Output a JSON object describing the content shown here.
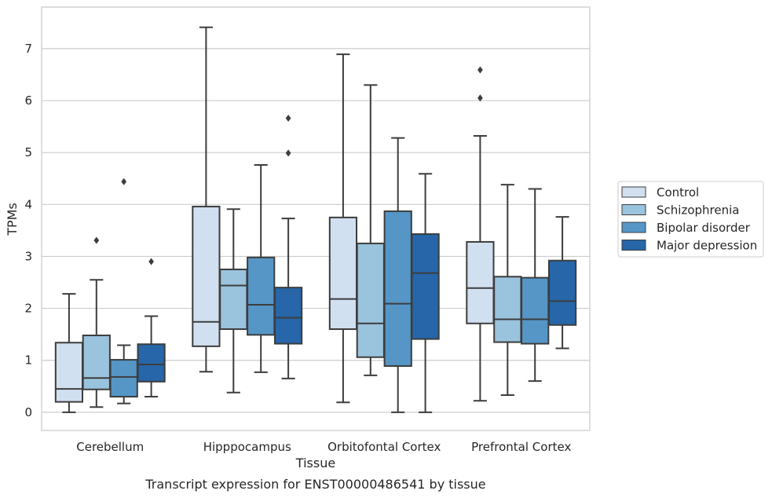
{
  "chart_data": {
    "type": "box",
    "title": "",
    "caption": "Transcript expression for ENST00000486541 by tissue",
    "xlabel": "Tissue",
    "ylabel": "TPMs",
    "ylim": [
      -0.35,
      7.8
    ],
    "yticks": [
      0,
      1,
      2,
      3,
      4,
      5,
      6,
      7
    ],
    "grid": "horizontal",
    "legend_placement": "right",
    "categories": [
      "Cerebellum",
      "Hipppocampus",
      "Orbitofontal Cortex",
      "Prefrontal Cortex"
    ],
    "series": [
      {
        "name": "Control",
        "color": "#d1e0f0",
        "boxes": [
          {
            "whislo": 0.0,
            "q1": 0.2,
            "med": 0.45,
            "q3": 1.34,
            "whishi": 2.28,
            "fliers": []
          },
          {
            "whislo": 0.78,
            "q1": 1.27,
            "med": 1.74,
            "q3": 3.96,
            "whishi": 7.41,
            "fliers": []
          },
          {
            "whislo": 0.19,
            "q1": 1.6,
            "med": 2.18,
            "q3": 3.75,
            "whishi": 6.89,
            "fliers": []
          },
          {
            "whislo": 0.22,
            "q1": 1.71,
            "med": 2.39,
            "q3": 3.28,
            "whishi": 5.32,
            "fliers": [
              6.05,
              6.59
            ]
          }
        ]
      },
      {
        "name": "Schizophrenia",
        "color": "#9ac3dd",
        "boxes": [
          {
            "whislo": 0.1,
            "q1": 0.44,
            "med": 0.66,
            "q3": 1.48,
            "whishi": 2.55,
            "fliers": [
              3.31
            ]
          },
          {
            "whislo": 0.38,
            "q1": 1.6,
            "med": 2.44,
            "q3": 2.75,
            "whishi": 3.91,
            "fliers": []
          },
          {
            "whislo": 0.71,
            "q1": 1.06,
            "med": 1.71,
            "q3": 3.25,
            "whishi": 6.3,
            "fliers": []
          },
          {
            "whislo": 0.33,
            "q1": 1.35,
            "med": 1.79,
            "q3": 2.61,
            "whishi": 4.38,
            "fliers": []
          }
        ]
      },
      {
        "name": "Bipolar disorder",
        "color": "#5596c7",
        "boxes": [
          {
            "whislo": 0.17,
            "q1": 0.3,
            "med": 0.68,
            "q3": 1.01,
            "whishi": 1.29,
            "fliers": [
              4.44
            ]
          },
          {
            "whislo": 0.77,
            "q1": 1.49,
            "med": 2.07,
            "q3": 2.98,
            "whishi": 4.76,
            "fliers": []
          },
          {
            "whislo": 0.0,
            "q1": 0.89,
            "med": 2.09,
            "q3": 3.87,
            "whishi": 5.28,
            "fliers": []
          },
          {
            "whislo": 0.6,
            "q1": 1.32,
            "med": 1.79,
            "q3": 2.59,
            "whishi": 4.3,
            "fliers": []
          }
        ]
      },
      {
        "name": "Major depression",
        "color": "#2666a9",
        "boxes": [
          {
            "whislo": 0.3,
            "q1": 0.59,
            "med": 0.92,
            "q3": 1.31,
            "whishi": 1.85,
            "fliers": [
              2.9
            ]
          },
          {
            "whislo": 0.65,
            "q1": 1.32,
            "med": 1.82,
            "q3": 2.4,
            "whishi": 3.73,
            "fliers": [
              4.99,
              5.66
            ]
          },
          {
            "whislo": 0.0,
            "q1": 1.41,
            "med": 2.68,
            "q3": 3.43,
            "whishi": 4.59,
            "fliers": []
          },
          {
            "whislo": 1.23,
            "q1": 1.68,
            "med": 2.14,
            "q3": 2.92,
            "whishi": 3.76,
            "fliers": []
          }
        ]
      }
    ]
  }
}
